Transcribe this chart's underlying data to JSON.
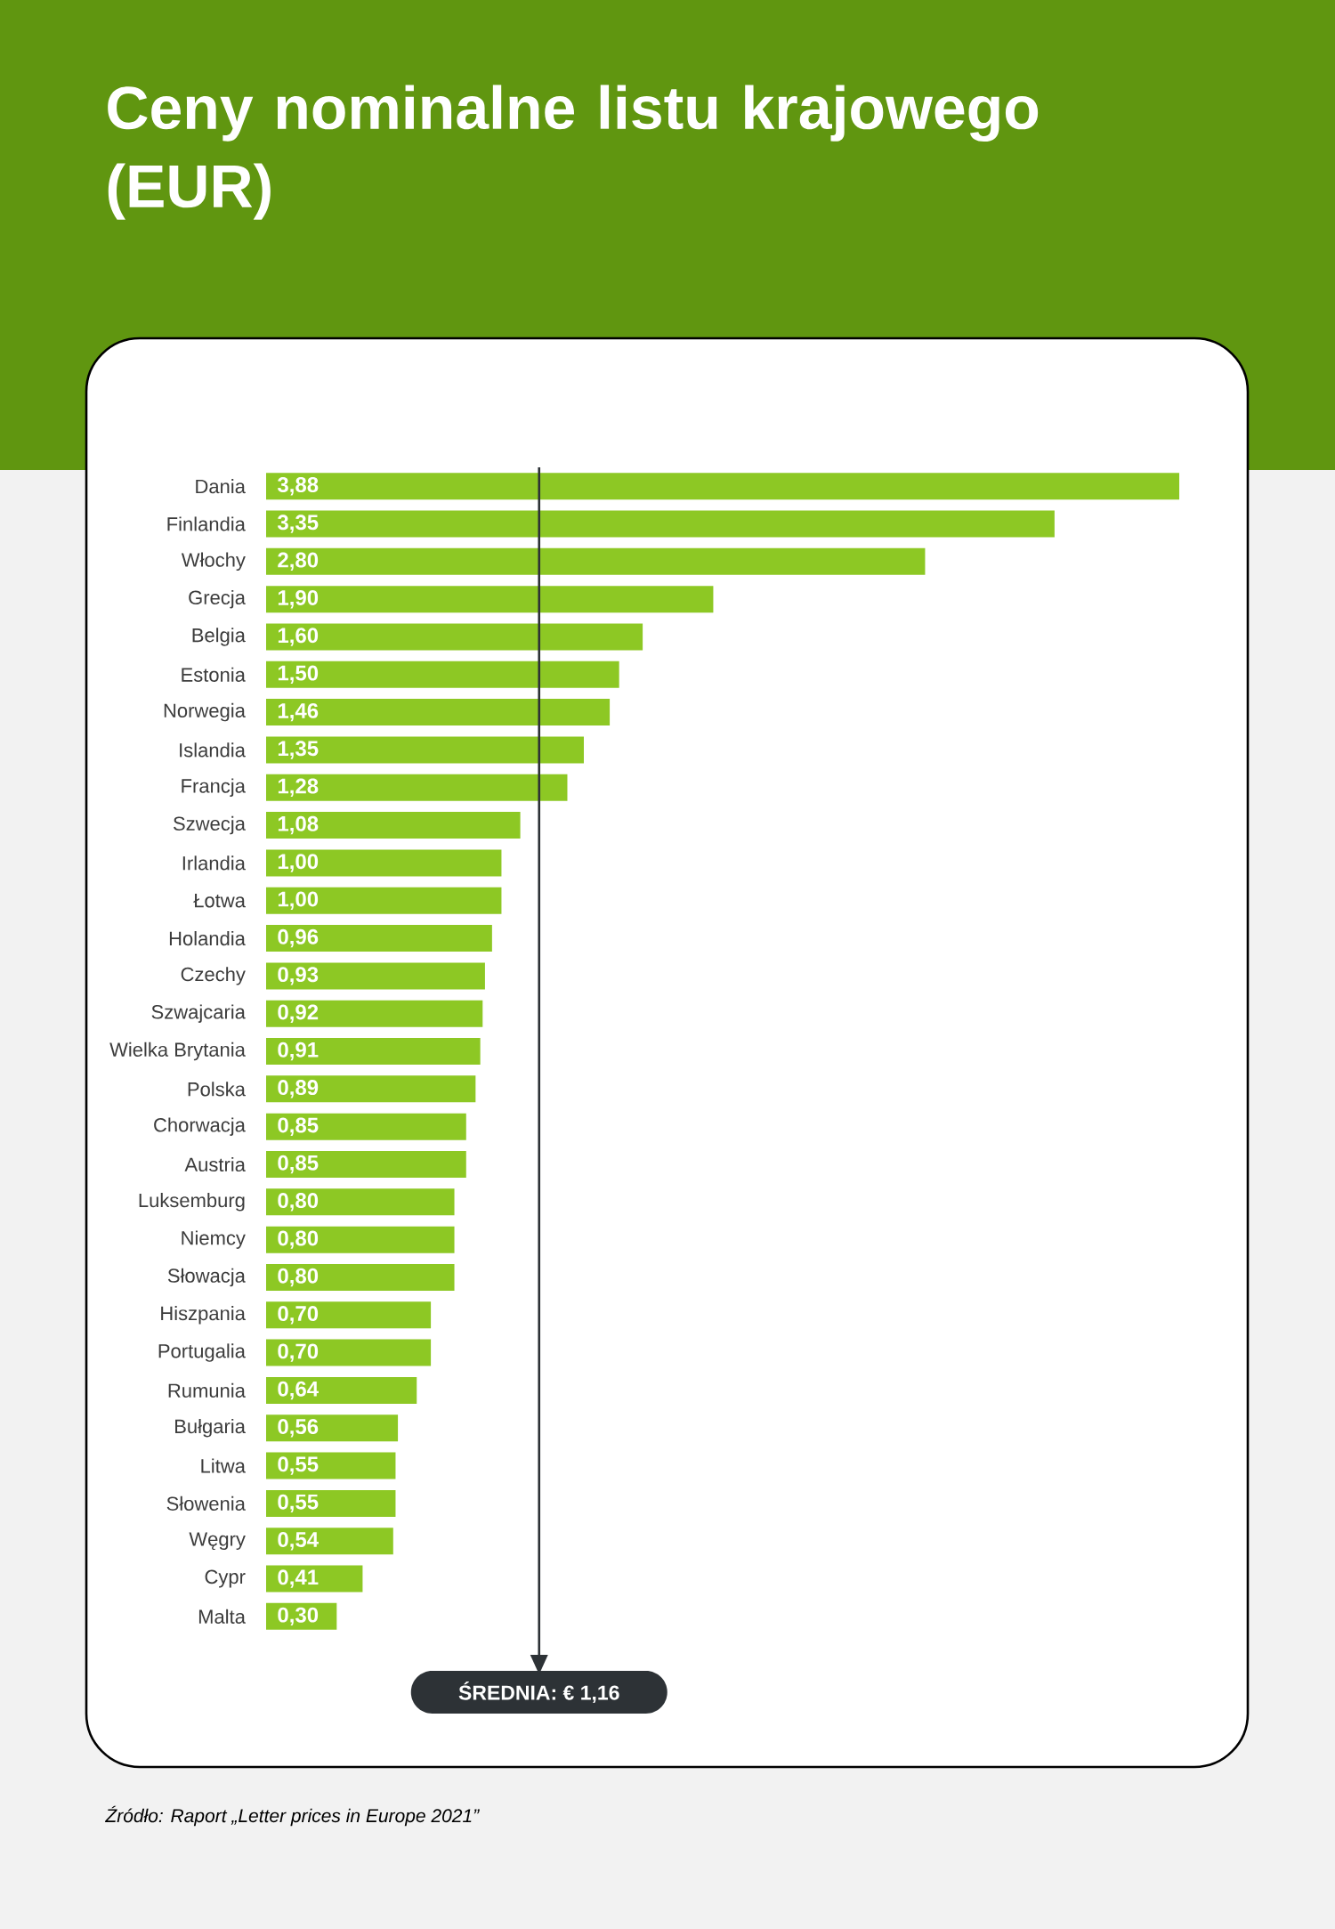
{
  "chart_data": {
    "type": "bar",
    "orientation": "horizontal",
    "title": "Ceny nominalne listu krajowego (EUR)",
    "categories": [
      "Dania",
      "Finlandia",
      "Włochy",
      "Grecja",
      "Belgia",
      "Estonia",
      "Norwegia",
      "Islandia",
      "Francja",
      "Szwecja",
      "Irlandia",
      "Łotwa",
      "Holandia",
      "Czechy",
      "Szwajcaria",
      "Wielka Brytania",
      "Polska",
      "Chorwacja",
      "Austria",
      "Luksemburg",
      "Niemcy",
      "Słowacja",
      "Hiszpania",
      "Portugalia",
      "Rumunia",
      "Bułgaria",
      "Litwa",
      "Słowenia",
      "Węgry",
      "Cypr",
      "Malta"
    ],
    "values": [
      3.88,
      3.35,
      2.8,
      1.9,
      1.6,
      1.5,
      1.46,
      1.35,
      1.28,
      1.08,
      1.0,
      1.0,
      0.96,
      0.93,
      0.92,
      0.91,
      0.89,
      0.85,
      0.85,
      0.8,
      0.8,
      0.8,
      0.7,
      0.7,
      0.64,
      0.56,
      0.55,
      0.55,
      0.54,
      0.41,
      0.3
    ],
    "value_labels": [
      "3,88",
      "3,35",
      "2,80",
      "1,90",
      "1,60",
      "1,50",
      "1,46",
      "1,35",
      "1,28",
      "1,08",
      "1,00",
      "1,00",
      "0,96",
      "0,93",
      "0,92",
      "0,91",
      "0,89",
      "0,85",
      "0,85",
      "0,80",
      "0,80",
      "0,80",
      "0,70",
      "0,70",
      "0,64",
      "0,56",
      "0,55",
      "0,55",
      "0,54",
      "0,41",
      "0,30"
    ],
    "color": "#8dc824",
    "ref_lines": [
      {
        "axis": "x",
        "value": 1.16,
        "label": "ŚREDNIA: € 1,16",
        "color": "#2d3236"
      }
    ],
    "annotations": [
      "Źródło: Raport „Letter prices in Europe 2021”"
    ]
  }
}
